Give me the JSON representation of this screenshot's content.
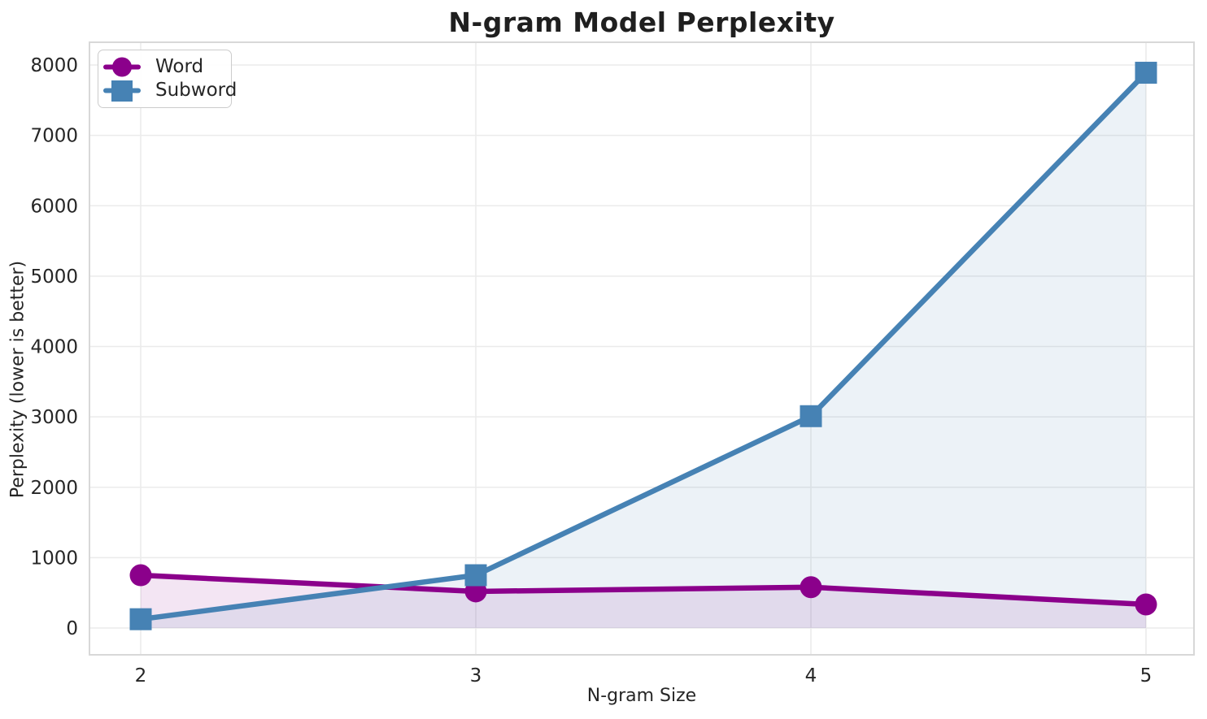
{
  "chart_data": {
    "type": "line",
    "title": "N-gram Model Perplexity",
    "xlabel": "N-gram Size",
    "ylabel": "Perplexity (lower is better)",
    "x": [
      2,
      3,
      4,
      5
    ],
    "xticks": [
      "2",
      "3",
      "4",
      "5"
    ],
    "yticks": [
      0,
      1000,
      2000,
      3000,
      4000,
      5000,
      6000,
      7000,
      8000
    ],
    "ylim": [
      0,
      8000
    ],
    "grid": true,
    "legend_position": "upper-left",
    "series": [
      {
        "name": "Word",
        "marker": "circle",
        "color": "#8B008B",
        "fill_alpha": 0.1,
        "values": [
          750,
          520,
          580,
          335
        ]
      },
      {
        "name": "Subword",
        "marker": "square",
        "color": "#4682B4",
        "fill_alpha": 0.1,
        "values": [
          125,
          750,
          3010,
          7890
        ]
      }
    ],
    "colors": {
      "grid": "#ebebeb",
      "spine": "#d8d8d8",
      "tick_text": "#262626"
    }
  }
}
